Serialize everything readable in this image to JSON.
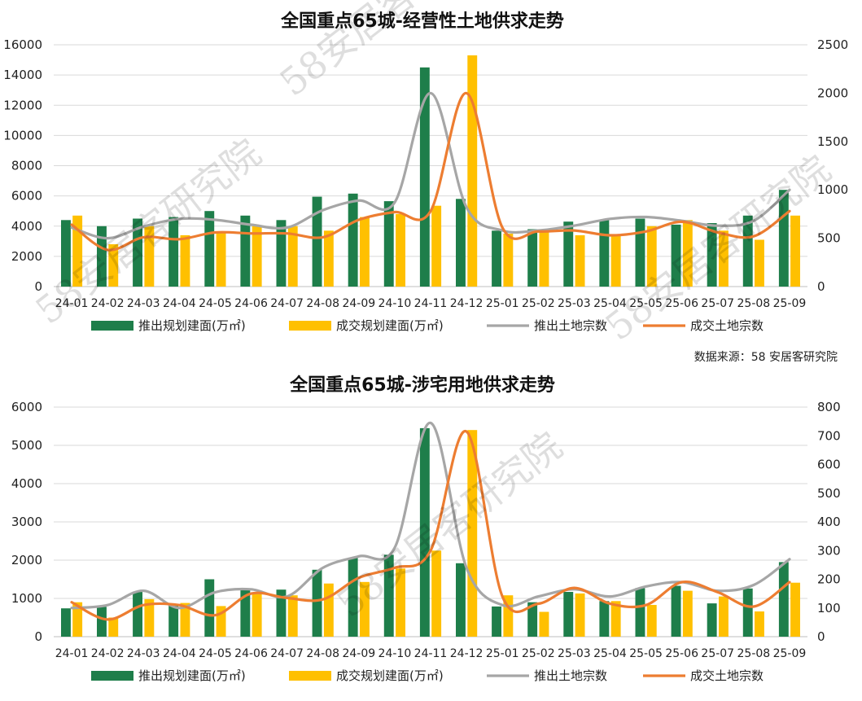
{
  "source_note": "数据来源：58 安居客研究院",
  "watermark": "58安居客研究院",
  "colors": {
    "push_area": "#1e7e4a",
    "deal_area": "#ffc000",
    "push_count": "#a6a6a6",
    "deal_count": "#ed7d31"
  },
  "chart_data": [
    {
      "type": "bar+line",
      "title": "全国重点65城-经营性土地供求走势",
      "categories": [
        "24-01",
        "24-02",
        "24-03",
        "24-04",
        "24-05",
        "24-06",
        "24-07",
        "24-08",
        "24-09",
        "24-10",
        "24-11",
        "24-12",
        "25-01",
        "25-02",
        "25-03",
        "25-04",
        "25-05",
        "25-06",
        "25-07",
        "25-08",
        "25-09"
      ],
      "y_left": {
        "min": 0,
        "max": 16000,
        "ticks": [
          "0",
          "2000",
          "4000",
          "6000",
          "8000",
          "10000",
          "12000",
          "14000",
          "16000"
        ]
      },
      "y_right": {
        "min": 0,
        "max": 2500,
        "ticks": [
          "0",
          "500",
          "1000",
          "1500",
          "2000",
          "2500"
        ]
      },
      "series": [
        {
          "name": "推出规划建面(万㎡)",
          "kind": "bar",
          "axis": "left",
          "values": [
            4400,
            4000,
            4500,
            4600,
            5000,
            4700,
            4400,
            5950,
            6150,
            5650,
            14500,
            5800,
            3700,
            3800,
            4300,
            4400,
            4500,
            4100,
            4200,
            4700,
            6400
          ]
        },
        {
          "name": "成交规划建面(万㎡)",
          "kind": "bar",
          "axis": "left",
          "values": [
            4700,
            2800,
            4000,
            3400,
            3600,
            4000,
            4000,
            3700,
            4600,
            4800,
            5350,
            15300,
            3500,
            3700,
            3400,
            3400,
            4000,
            4400,
            3700,
            3100,
            4700
          ]
        },
        {
          "name": "推出土地宗数",
          "kind": "line",
          "axis": "right",
          "values": [
            610,
            500,
            620,
            700,
            690,
            640,
            610,
            790,
            890,
            870,
            2000,
            820,
            580,
            580,
            630,
            700,
            720,
            680,
            630,
            680,
            1000
          ]
        },
        {
          "name": "成交土地宗数",
          "kind": "line",
          "axis": "right",
          "values": [
            640,
            380,
            510,
            490,
            560,
            550,
            550,
            510,
            690,
            770,
            780,
            2000,
            610,
            570,
            580,
            530,
            570,
            670,
            560,
            520,
            780
          ]
        }
      ]
    },
    {
      "type": "bar+line",
      "title": "全国重点65城-涉宅用地供求走势",
      "categories": [
        "24-01",
        "24-02",
        "24-03",
        "24-04",
        "24-05",
        "24-06",
        "24-07",
        "24-08",
        "24-09",
        "24-10",
        "24-11",
        "24-12",
        "25-01",
        "25-02",
        "25-03",
        "25-04",
        "25-05",
        "25-06",
        "25-07",
        "25-08",
        "25-09"
      ],
      "y_left": {
        "min": 0,
        "max": 6000,
        "ticks": [
          "0",
          "1000",
          "2000",
          "3000",
          "4000",
          "5000",
          "6000"
        ]
      },
      "y_right": {
        "min": 0,
        "max": 800,
        "ticks": [
          "0",
          "100",
          "200",
          "300",
          "400",
          "500",
          "600",
          "700",
          "800"
        ]
      },
      "series": [
        {
          "name": "推出规划建面(万㎡)",
          "kind": "bar",
          "axis": "left",
          "values": [
            740,
            780,
            1180,
            830,
            1500,
            1240,
            1230,
            1750,
            2060,
            2140,
            5450,
            1920,
            790,
            900,
            1170,
            930,
            1270,
            1330,
            870,
            1260,
            1950
          ]
        },
        {
          "name": "成交规划建面(万㎡)",
          "kind": "bar",
          "axis": "left",
          "values": [
            900,
            500,
            980,
            880,
            800,
            1150,
            1080,
            1390,
            1430,
            1780,
            2250,
            5400,
            1080,
            650,
            1130,
            930,
            830,
            1200,
            1050,
            660,
            1410
          ]
        },
        {
          "name": "推出土地宗数",
          "kind": "line",
          "axis": "right",
          "values": [
            100,
            110,
            160,
            100,
            155,
            165,
            140,
            240,
            280,
            310,
            745,
            240,
            110,
            140,
            165,
            140,
            175,
            190,
            160,
            180,
            270
          ]
        },
        {
          "name": "成交土地宗数",
          "kind": "line",
          "axis": "right",
          "values": [
            120,
            60,
            110,
            110,
            75,
            150,
            135,
            130,
            205,
            240,
            300,
            715,
            140,
            115,
            170,
            115,
            110,
            190,
            155,
            105,
            190
          ]
        }
      ]
    }
  ]
}
